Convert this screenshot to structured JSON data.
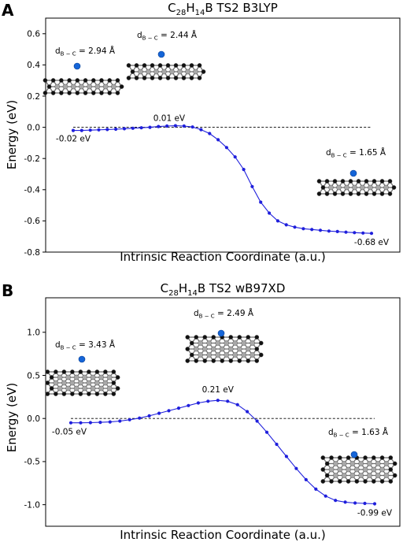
{
  "chart_data": [
    {
      "type": "line",
      "panel": "A",
      "title": "C28H14B TS2 B3LYP",
      "xlabel": "Intrinsic Reaction Coordinate (a.u.)",
      "ylabel": "Energy (eV)",
      "ylim": [
        -0.8,
        0.7
      ],
      "yticks": [
        "0.6",
        "0.4",
        "0.2",
        "0.0",
        "-0.2",
        "-0.4",
        "-0.6",
        "-0.8"
      ],
      "ytick_values": [
        0.6,
        0.4,
        0.2,
        0.0,
        -0.2,
        -0.4,
        -0.6,
        -0.8
      ],
      "x_ticks_shown": false,
      "reference_line_y": 0.0,
      "series": [
        {
          "color": "#1f1fdc",
          "values": [
            -0.02,
            -0.02,
            -0.018,
            -0.016,
            -0.014,
            -0.012,
            -0.009,
            -0.006,
            -0.003,
            0.0,
            0.005,
            0.008,
            0.01,
            0.008,
            0.002,
            -0.015,
            -0.04,
            -0.08,
            -0.13,
            -0.19,
            -0.27,
            -0.38,
            -0.48,
            -0.55,
            -0.6,
            -0.625,
            -0.64,
            -0.65,
            -0.655,
            -0.66,
            -0.665,
            -0.668,
            -0.672,
            -0.675,
            -0.678,
            -0.68
          ]
        }
      ],
      "annotations": [
        {
          "text": "-0.02 eV",
          "index": 0
        },
        {
          "text": "0.01 eV",
          "index": 12
        },
        {
          "text": "-0.68 eV",
          "index": 35
        }
      ],
      "distance_labels": [
        {
          "sub": "B − C",
          "value": "= 2.94 Å"
        },
        {
          "sub": "B − C",
          "value": "= 2.44 Å"
        },
        {
          "sub": "B − C",
          "value": "= 1.65 Å"
        }
      ]
    },
    {
      "type": "line",
      "panel": "B",
      "title": "C28H14B TS2 wB97XD",
      "xlabel": "Intrinsic Reaction Coordinate (a.u.)",
      "ylabel": "Energy (eV)",
      "ylim": [
        -1.25,
        1.4
      ],
      "yticks": [
        "1.0",
        "0.5",
        "0.0",
        "-0.5",
        "-1.0"
      ],
      "ytick_values": [
        1.0,
        0.5,
        0.0,
        -0.5,
        -1.0
      ],
      "x_ticks_shown": false,
      "reference_line_y": 0.0,
      "series": [
        {
          "color": "#1f1fdc",
          "values": [
            -0.05,
            -0.05,
            -0.048,
            -0.045,
            -0.04,
            -0.03,
            -0.015,
            0.005,
            0.03,
            0.06,
            0.09,
            0.12,
            0.15,
            0.18,
            0.2,
            0.21,
            0.2,
            0.16,
            0.08,
            -0.03,
            -0.16,
            -0.3,
            -0.44,
            -0.58,
            -0.71,
            -0.82,
            -0.9,
            -0.95,
            -0.97,
            -0.98,
            -0.985,
            -0.99
          ]
        }
      ],
      "annotations": [
        {
          "text": "-0.05 eV",
          "index": 0
        },
        {
          "text": "0.21 eV",
          "index": 15
        },
        {
          "text": "-0.99 eV",
          "index": 31
        }
      ],
      "distance_labels": [
        {
          "sub": "B − C",
          "value": "= 3.43 Å"
        },
        {
          "sub": "B − C",
          "value": "= 2.49 Å"
        },
        {
          "sub": "B − C",
          "value": "= 1.63 Å"
        }
      ]
    }
  ],
  "molecule_colors": {
    "boron": "#1565d8",
    "carbon": "#a8a8a8",
    "hydrogen": "#111111"
  }
}
